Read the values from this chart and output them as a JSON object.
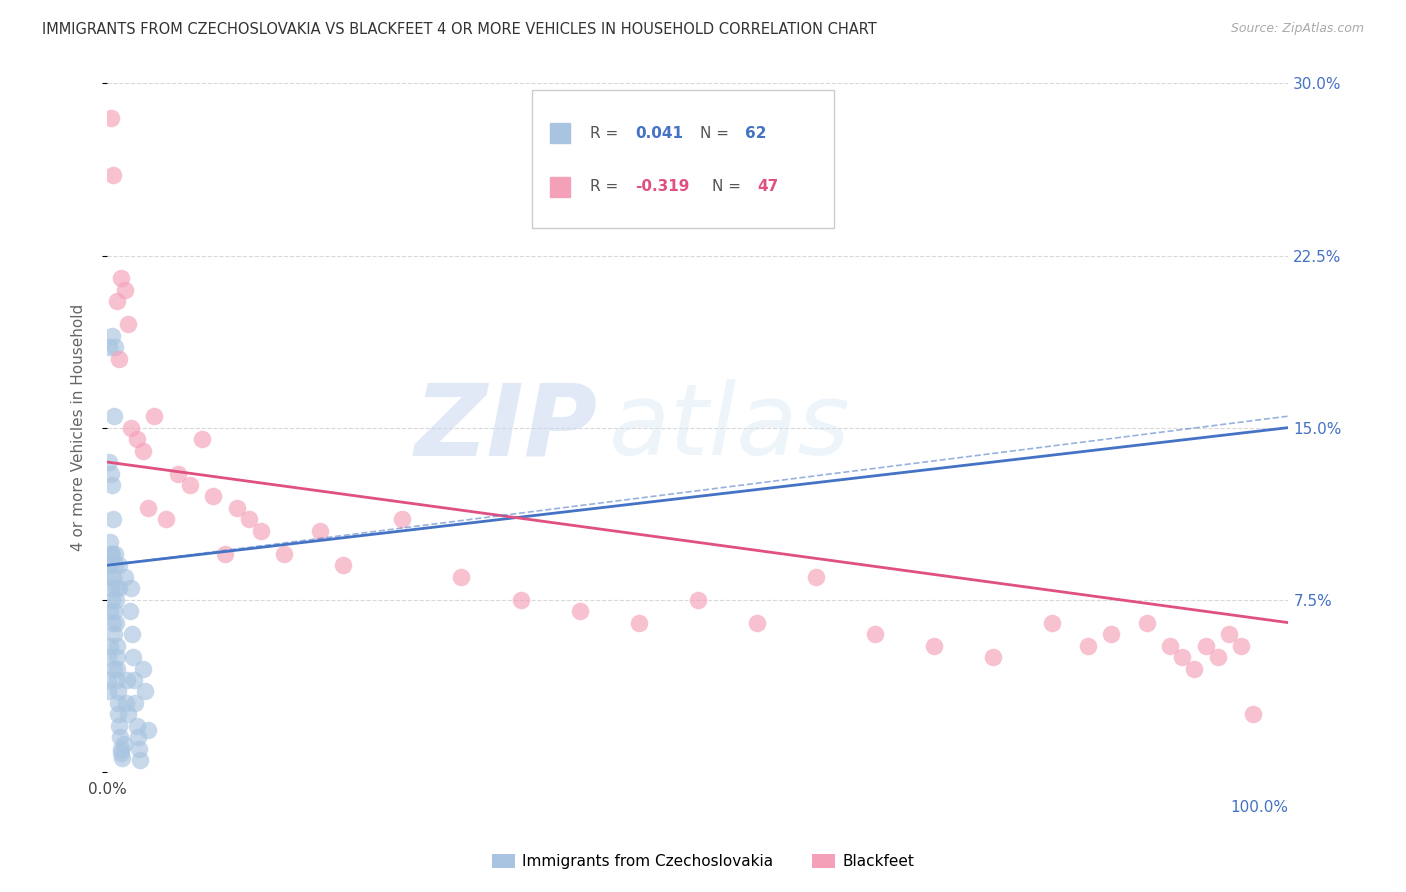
{
  "title": "IMMIGRANTS FROM CZECHOSLOVAKIA VS BLACKFEET 4 OR MORE VEHICLES IN HOUSEHOLD CORRELATION CHART",
  "source": "Source: ZipAtlas.com",
  "ylabel": "4 or more Vehicles in Household",
  "xmin": 0.0,
  "xmax": 100.0,
  "ymin": 0.0,
  "ymax": 30.0,
  "yticks": [
    0.0,
    7.5,
    15.0,
    22.5,
    30.0
  ],
  "xticks": [
    0.0,
    20.0,
    40.0,
    60.0,
    80.0,
    100.0
  ],
  "blue_R": 0.041,
  "blue_N": 62,
  "pink_R": -0.319,
  "pink_N": 47,
  "blue_label": "Immigrants from Czechoslovakia",
  "pink_label": "Blackfeet",
  "blue_line_color": "#4472c4",
  "pink_line_color": "#e05080",
  "blue_dot_color": "#a8c4e0",
  "pink_dot_color": "#f4a0b8",
  "watermark_zip": "ZIP",
  "watermark_atlas": "atlas",
  "background_color": "#ffffff",
  "grid_color": "#d8d8d8",
  "blue_line_x0": 0.0,
  "blue_line_y0": 9.0,
  "blue_line_x1": 100.0,
  "blue_line_y1": 15.0,
  "pink_line_x0": 0.0,
  "pink_line_y0": 13.5,
  "pink_line_x1": 100.0,
  "pink_line_y1": 6.5,
  "ci_dash_upper_y0": 9.0,
  "ci_dash_upper_y1": 15.5,
  "ci_dash_lower_y0": 9.0,
  "ci_dash_lower_y1": 14.5,
  "blue_scatter_x": [
    0.05,
    0.08,
    0.1,
    0.12,
    0.15,
    0.18,
    0.2,
    0.22,
    0.25,
    0.28,
    0.3,
    0.32,
    0.35,
    0.38,
    0.4,
    0.42,
    0.45,
    0.48,
    0.5,
    0.52,
    0.55,
    0.58,
    0.6,
    0.62,
    0.65,
    0.68,
    0.7,
    0.72,
    0.75,
    0.78,
    0.8,
    0.82,
    0.85,
    0.88,
    0.9,
    0.92,
    0.95,
    0.98,
    1.0,
    1.05,
    1.1,
    1.15,
    1.2,
    1.3,
    1.4,
    1.5,
    1.6,
    1.7,
    1.8,
    1.9,
    2.0,
    2.1,
    2.2,
    2.3,
    2.4,
    2.5,
    2.6,
    2.7,
    2.8,
    3.0,
    3.2,
    3.5
  ],
  "blue_scatter_y": [
    5.0,
    3.5,
    8.5,
    4.0,
    9.0,
    13.5,
    18.5,
    5.5,
    7.0,
    10.0,
    9.5,
    8.0,
    13.0,
    12.5,
    19.0,
    7.5,
    9.5,
    6.5,
    11.0,
    8.5,
    7.0,
    6.0,
    15.5,
    4.5,
    18.5,
    9.5,
    9.0,
    8.0,
    7.5,
    6.5,
    5.5,
    5.0,
    4.5,
    4.0,
    3.5,
    3.0,
    2.5,
    2.0,
    8.0,
    9.0,
    1.5,
    1.0,
    0.8,
    0.6,
    1.2,
    8.5,
    3.0,
    4.0,
    2.5,
    7.0,
    8.0,
    6.0,
    5.0,
    4.0,
    3.0,
    2.0,
    1.5,
    1.0,
    0.5,
    4.5,
    3.5,
    1.8
  ],
  "pink_scatter_x": [
    0.3,
    0.5,
    0.8,
    1.0,
    1.2,
    1.5,
    1.8,
    2.0,
    2.5,
    3.0,
    3.5,
    4.0,
    5.0,
    6.0,
    7.0,
    8.0,
    9.0,
    10.0,
    11.0,
    12.0,
    13.0,
    15.0,
    18.0,
    20.0,
    25.0,
    30.0,
    35.0,
    40.0,
    45.0,
    50.0,
    55.0,
    60.0,
    65.0,
    70.0,
    75.0,
    80.0,
    83.0,
    85.0,
    88.0,
    90.0,
    91.0,
    92.0,
    93.0,
    94.0,
    95.0,
    96.0,
    97.0
  ],
  "pink_scatter_y": [
    28.5,
    26.0,
    20.5,
    18.0,
    21.5,
    21.0,
    19.5,
    15.0,
    14.5,
    14.0,
    11.5,
    15.5,
    11.0,
    13.0,
    12.5,
    14.5,
    12.0,
    9.5,
    11.5,
    11.0,
    10.5,
    9.5,
    10.5,
    9.0,
    11.0,
    8.5,
    7.5,
    7.0,
    6.5,
    7.5,
    6.5,
    8.5,
    6.0,
    5.5,
    5.0,
    6.5,
    5.5,
    6.0,
    6.5,
    5.5,
    5.0,
    4.5,
    5.5,
    5.0,
    6.0,
    5.5,
    2.5
  ],
  "title_fontsize": 10.5,
  "source_fontsize": 9.0,
  "axis_fontsize": 11,
  "legend_fontsize": 11
}
